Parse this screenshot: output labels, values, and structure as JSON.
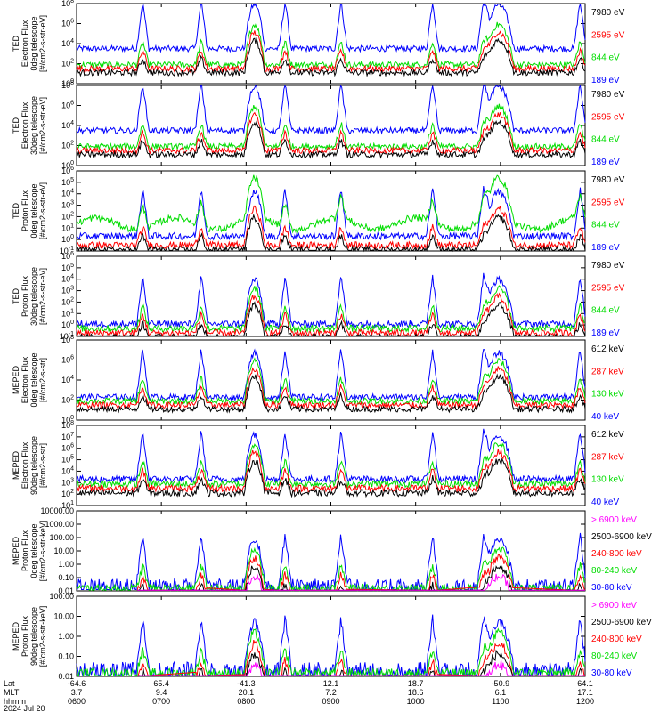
{
  "chart_data": {
    "type": "line",
    "date_label": "2024 Jul 20",
    "xaxis": {
      "row_labels": [
        "Lat",
        "MLT",
        "hhmm"
      ],
      "ticks": [
        {
          "lat": "-64.6",
          "mlt": "3.7",
          "hhmm": "0600"
        },
        {
          "lat": "65.4",
          "mlt": "9.4",
          "hhmm": "0700"
        },
        {
          "lat": "-41.3",
          "mlt": "20.1",
          "hhmm": "0800"
        },
        {
          "lat": "12.1",
          "mlt": "7.2",
          "hhmm": "0900"
        },
        {
          "lat": "18.7",
          "mlt": "18.6",
          "hhmm": "1000"
        },
        {
          "lat": "-50.9",
          "mlt": "6.1",
          "hhmm": "1100"
        },
        {
          "lat": "64.1",
          "mlt": "17.1",
          "hhmm": "1200"
        }
      ]
    },
    "colors": {
      "blue": "#0000ff",
      "green": "#00dd00",
      "red": "#ff0000",
      "black": "#000000",
      "magenta": "#ff00ff"
    },
    "panels": [
      {
        "ylabel": [
          "TED",
          "Electron Flux",
          "0deg telescope",
          "[#/cm2-s-str-eV]"
        ],
        "yscale": "log",
        "ticks": [
          "10^0",
          "10^2",
          "10^4",
          "10^6",
          "10^8"
        ],
        "yexp": [
          0,
          8
        ],
        "base": 2,
        "legend": [
          {
            "text": "7980 eV",
            "color": "#000000"
          },
          {
            "text": "2595 eV",
            "color": "#ff0000"
          },
          {
            "text": "844 eV",
            "color": "#00dd00"
          },
          {
            "text": "189 eV",
            "color": "#0000ff"
          }
        ]
      },
      {
        "ylabel": [
          "TED",
          "Electron Flux",
          "30deg telescope",
          "[#/cm2-s-str-eV]"
        ],
        "yscale": "log",
        "ticks": [
          "10^0",
          "10^2",
          "10^4",
          "10^6",
          "10^8"
        ],
        "yexp": [
          0,
          8
        ],
        "base": 2,
        "legend": [
          {
            "text": "7980 eV",
            "color": "#000000"
          },
          {
            "text": "2595 eV",
            "color": "#ff0000"
          },
          {
            "text": "844 eV",
            "color": "#00dd00"
          },
          {
            "text": "189 eV",
            "color": "#0000ff"
          }
        ]
      },
      {
        "ylabel": [
          "TED",
          "Proton Flux",
          "0deg telescope",
          "[#/cm2-s-str-eV]"
        ],
        "yscale": "log",
        "ticks": [
          "10^-1",
          "10^0",
          "10^1",
          "10^2",
          "10^3",
          "10^4",
          "10^5",
          "10^6"
        ],
        "yexp": [
          -1,
          6
        ],
        "base": 1,
        "legend": [
          {
            "text": "7980 eV",
            "color": "#000000"
          },
          {
            "text": "2595 eV",
            "color": "#ff0000"
          },
          {
            "text": "844 eV",
            "color": "#00dd00"
          },
          {
            "text": "189 eV",
            "color": "#0000ff"
          }
        ]
      },
      {
        "ylabel": [
          "TED",
          "Proton Flux",
          "30deg telescope",
          "[#/cm2-s-str-eV]"
        ],
        "yscale": "log",
        "ticks": [
          "10^-1",
          "10^0",
          "10^1",
          "10^2",
          "10^3",
          "10^4",
          "10^5",
          "10^6"
        ],
        "yexp": [
          -1,
          6
        ],
        "base": 0.8,
        "legend": [
          {
            "text": "7980 eV",
            "color": "#000000"
          },
          {
            "text": "2595 eV",
            "color": "#ff0000"
          },
          {
            "text": "844 eV",
            "color": "#00dd00"
          },
          {
            "text": "189 eV",
            "color": "#0000ff"
          }
        ]
      },
      {
        "ylabel": [
          "MEPED",
          "Electron Flux",
          "0deg telescope",
          "[#/cm2-s-str]"
        ],
        "yscale": "log",
        "ticks": [
          "10^0",
          "10^2",
          "10^4",
          "10^6",
          "10^8"
        ],
        "yexp": [
          0,
          8
        ],
        "base": 2,
        "legend": [
          {
            "text": "612 keV",
            "color": "#000000"
          },
          {
            "text": "287 keV",
            "color": "#ff0000"
          },
          {
            "text": "130 keV",
            "color": "#00dd00"
          },
          {
            "text": "40 keV",
            "color": "#0000ff"
          }
        ]
      },
      {
        "ylabel": [
          "MEPED",
          "Electron Flux",
          "90deg telescope",
          "[#/cm2-s-str]"
        ],
        "yscale": "log",
        "ticks": [
          "10^1",
          "10^2",
          "10^3",
          "10^4",
          "10^5",
          "10^6",
          "10^7",
          "10^8"
        ],
        "yexp": [
          1,
          8
        ],
        "base": 2,
        "legend": [
          {
            "text": "612 keV",
            "color": "#000000"
          },
          {
            "text": "287 keV",
            "color": "#ff0000"
          },
          {
            "text": "130 keV",
            "color": "#00dd00"
          },
          {
            "text": "40 keV",
            "color": "#0000ff"
          }
        ]
      },
      {
        "ylabel": [
          "MEPED",
          "Proton Flux",
          "0deg telescope",
          "[#/cm2-s-str-keV]"
        ],
        "yscale": "log",
        "ticks": [
          "0.01",
          "0.10",
          "1.00",
          "10.00",
          "100.00",
          "1000.00",
          "10000.00"
        ],
        "yexp": [
          -2,
          4
        ],
        "base": 0.3,
        "legend": [
          {
            "text": "> 6900 keV",
            "color": "#ff00ff"
          },
          {
            "text": "2500-6900 keV",
            "color": "#000000"
          },
          {
            "text": "240-800 keV",
            "color": "#ff0000"
          },
          {
            "text": "80-240 keV",
            "color": "#00dd00"
          },
          {
            "text": "30-80 keV",
            "color": "#0000ff"
          }
        ]
      },
      {
        "ylabel": [
          "MEPED",
          "Proton Flux",
          "90deg telescope",
          "[#/cm2-s-str-keV]"
        ],
        "yscale": "log",
        "ticks": [
          "0.01",
          "0.10",
          "1.00",
          "10.00",
          "100.00"
        ],
        "yexp": [
          -2,
          3
        ],
        "base": 0.3,
        "legend": [
          {
            "text": "> 6900 keV",
            "color": "#ff00ff"
          },
          {
            "text": "2500-6900 keV",
            "color": "#000000"
          },
          {
            "text": "240-800 keV",
            "color": "#ff0000"
          },
          {
            "text": "80-240 keV",
            "color": "#00dd00"
          },
          {
            "text": "30-80 keV",
            "color": "#0000ff"
          }
        ]
      }
    ]
  }
}
